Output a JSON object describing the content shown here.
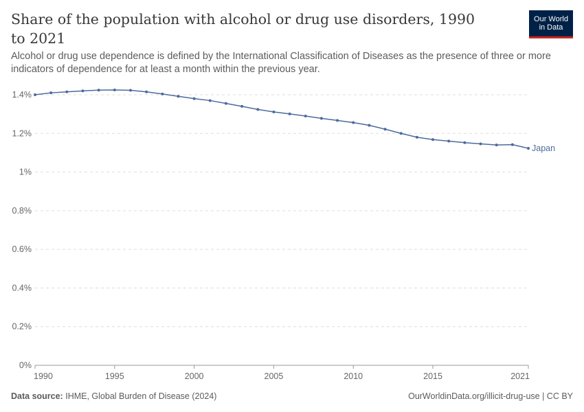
{
  "header": {
    "title": "Share of the population with alcohol or drug use disorders, 1990 to 2021",
    "subtitle": "Alcohol or drug use dependence is defined by the International Classification of Diseases as the presence of three or more indicators of dependence for at least a month within the previous year.",
    "logo_line1": "Our World",
    "logo_line2": "in Data"
  },
  "footer": {
    "source_label": "Data source:",
    "source": "IHME, Global Burden of Disease (2024)",
    "link": "OurWorldinData.org/illicit-drug-use | CC BY"
  },
  "colors": {
    "series": "#4c6a9c",
    "logo_bg": "#002147",
    "logo_accent": "#ce261e"
  },
  "chart_data": {
    "type": "line",
    "title": "Share of the population with alcohol or drug use disorders, 1990 to 2021",
    "xlim": [
      1990,
      2021
    ],
    "ylim": [
      0,
      1.4
    ],
    "x_ticks": [
      1990,
      1995,
      2000,
      2005,
      2010,
      2015,
      2021
    ],
    "y_ticks": [
      0,
      0.2,
      0.4,
      0.6,
      0.8,
      1,
      1.2,
      1.4
    ],
    "y_tick_labels": [
      "0%",
      "0.2%",
      "0.4%",
      "0.6%",
      "0.8%",
      "1%",
      "1.2%",
      "1.4%"
    ],
    "grid": "horizontal dashed",
    "series": [
      {
        "name": "Japan",
        "x": [
          1990,
          1991,
          1992,
          1993,
          1994,
          1995,
          1996,
          1997,
          1998,
          1999,
          2000,
          2001,
          2002,
          2003,
          2004,
          2005,
          2006,
          2007,
          2008,
          2009,
          2010,
          2011,
          2012,
          2013,
          2014,
          2015,
          2016,
          2017,
          2018,
          2019,
          2020,
          2021
        ],
        "values": [
          1.4,
          1.41,
          1.415,
          1.42,
          1.424,
          1.425,
          1.423,
          1.415,
          1.404,
          1.392,
          1.38,
          1.37,
          1.355,
          1.34,
          1.324,
          1.311,
          1.301,
          1.29,
          1.278,
          1.267,
          1.256,
          1.242,
          1.222,
          1.2,
          1.18,
          1.168,
          1.16,
          1.152,
          1.146,
          1.14,
          1.142,
          1.123
        ]
      }
    ]
  }
}
